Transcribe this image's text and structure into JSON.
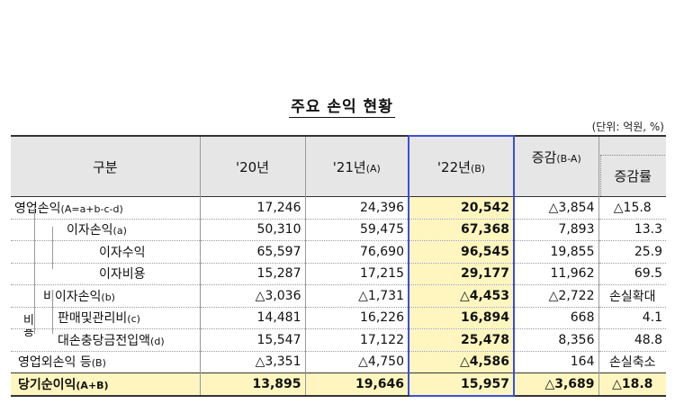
{
  "title": "주요 손익 현황",
  "unit": "(단위: 억원, %)",
  "headers": {
    "category": "구분",
    "y20": "'20년",
    "y21": "'21년",
    "y21_sub": "(A)",
    "y22": "'22년",
    "y22_sub": "(B)",
    "change": "증감",
    "change_sub": "(B-A)",
    "rate": "증감률"
  },
  "side_labels": {
    "bi1": "비",
    "bi2": "용"
  },
  "rows": [
    {
      "label": "영업손익",
      "label_sub": "(A=a+b-c-d)",
      "y20": "17,246",
      "y21": "24,396",
      "y22": "20,542",
      "chg": "△3,854",
      "rate": "△15.8"
    },
    {
      "label": "이자손익",
      "label_sub": "(a)",
      "y20": "50,310",
      "y21": "59,475",
      "y22": "67,368",
      "chg": "7,893",
      "rate": "13.3"
    },
    {
      "label": "이자수익",
      "label_sub": "",
      "y20": "65,597",
      "y21": "76,690",
      "y22": "96,545",
      "chg": "19,855",
      "rate": "25.9"
    },
    {
      "label": "이자비용",
      "label_sub": "",
      "y20": "15,287",
      "y21": "17,215",
      "y22": "29,177",
      "chg": "11,962",
      "rate": "69.5"
    },
    {
      "label": "비이자손익",
      "label_sub": "(b)",
      "y20": "△3,036",
      "y21": "△1,731",
      "y22": "△4,453",
      "chg": "△2,722",
      "rate": "손실확대"
    },
    {
      "label": "판매및관리비",
      "label_sub": "(c)",
      "y20": "14,481",
      "y21": "16,226",
      "y22": "16,894",
      "chg": "668",
      "rate": "4.1"
    },
    {
      "label": "대손충당금전입액",
      "label_sub": "(d)",
      "y20": "15,547",
      "y21": "17,122",
      "y22": "25,478",
      "chg": "8,356",
      "rate": "48.8"
    },
    {
      "label": "영업외손익 등",
      "label_sub": "(B)",
      "y20": "△3,351",
      "y21": "△4,750",
      "y22": "△4,586",
      "chg": "164",
      "rate": "손실축소"
    },
    {
      "label": "당기순이익",
      "label_sub": "(A+B)",
      "y20": "13,895",
      "y21": "19,646",
      "y22": "15,957",
      "chg": "△3,689",
      "rate": "△18.8"
    }
  ]
}
